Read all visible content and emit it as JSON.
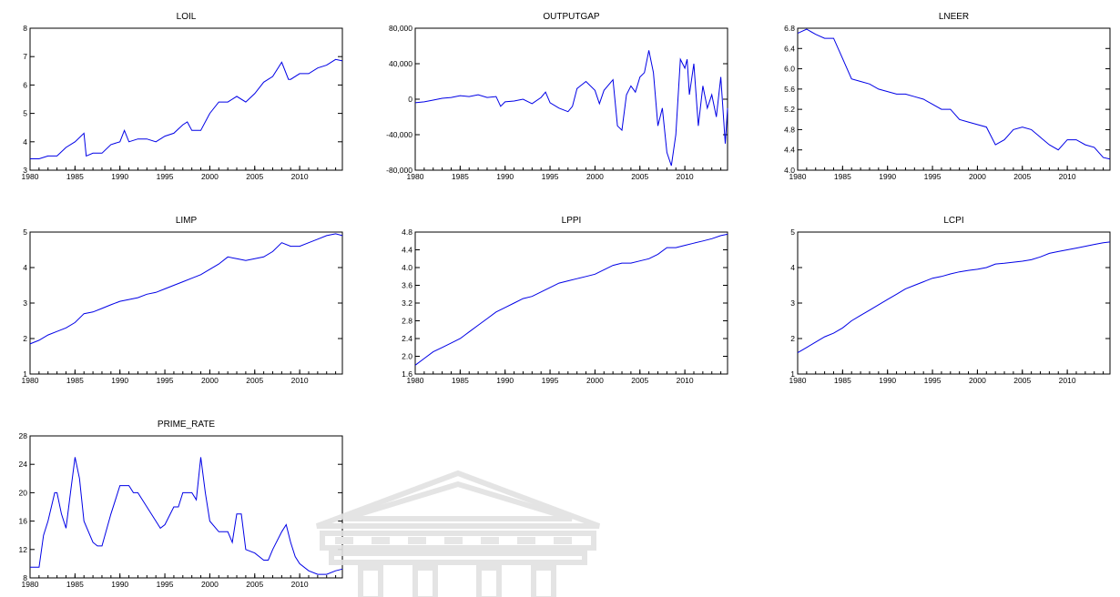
{
  "colors": {
    "series": "#0000e6",
    "axis": "#000000",
    "background": "#ffffff"
  },
  "watermark": {
    "icon": "building-columns-watermark"
  },
  "chart_data": [
    {
      "type": "line",
      "title": "LOIL",
      "xlim": [
        1980,
        2014.75
      ],
      "ylim": [
        3,
        8
      ],
      "x_ticks": [
        "1980",
        "1985",
        "1990",
        "1995",
        "2000",
        "2005",
        "2010"
      ],
      "y_ticks": [
        "3",
        "4",
        "5",
        "6",
        "7",
        "8"
      ],
      "series": [
        {
          "x": [
            1980,
            1981,
            1982,
            1983,
            1984,
            1985,
            1986,
            1986.25,
            1987,
            1988,
            1989,
            1990,
            1990.5,
            1991,
            1992,
            1993,
            1994,
            1995,
            1996,
            1997,
            1997.5,
            1998,
            1999,
            2000,
            2001,
            2002,
            2003,
            2004,
            2005,
            2006,
            2007,
            2008,
            2008.75,
            2009,
            2010,
            2011,
            2012,
            2013,
            2014,
            2014.75
          ],
          "y": [
            3.4,
            3.4,
            3.5,
            3.5,
            3.8,
            4.0,
            4.3,
            3.5,
            3.6,
            3.6,
            3.9,
            4.0,
            4.4,
            4.0,
            4.1,
            4.1,
            4.0,
            4.2,
            4.3,
            4.6,
            4.7,
            4.4,
            4.4,
            5.0,
            5.4,
            5.4,
            5.6,
            5.4,
            5.7,
            6.1,
            6.3,
            6.8,
            6.2,
            6.2,
            6.4,
            6.4,
            6.6,
            6.7,
            6.9,
            6.85
          ]
        }
      ]
    },
    {
      "type": "line",
      "title": "OUTPUTGAP",
      "xlim": [
        1980,
        2014.75
      ],
      "ylim": [
        -80000,
        80000
      ],
      "x_ticks": [
        "1980",
        "1985",
        "1990",
        "1995",
        "2000",
        "2005",
        "2010"
      ],
      "y_ticks": [
        "-80,000",
        "-40,000",
        "0",
        "40,000",
        "80,000"
      ],
      "series": [
        {
          "x": [
            1980,
            1981,
            1982,
            1983,
            1984,
            1985,
            1986,
            1987,
            1988,
            1989,
            1989.5,
            1990,
            1991,
            1992,
            1993,
            1994,
            1994.5,
            1995,
            1996,
            1997,
            1997.5,
            1998,
            1999,
            2000,
            2000.5,
            2001,
            2002,
            2002.5,
            2003,
            2003.5,
            2004,
            2004.5,
            2005,
            2005.5,
            2006,
            2006.5,
            2007,
            2007.5,
            2008,
            2008.5,
            2009,
            2009.5,
            2010,
            2010.25,
            2010.5,
            2011,
            2011.5,
            2012,
            2012.5,
            2013,
            2013.5,
            2014,
            2014.5,
            2014.75
          ],
          "y": [
            -4000,
            -3000,
            -1000,
            1000,
            2000,
            4000,
            3000,
            5000,
            2000,
            3000,
            -8000,
            -3000,
            -2000,
            0,
            -5000,
            2000,
            8000,
            -4000,
            -10000,
            -14000,
            -8000,
            12000,
            20000,
            10000,
            -5000,
            10000,
            22000,
            -30000,
            -35000,
            5000,
            15000,
            8000,
            25000,
            30000,
            55000,
            30000,
            -30000,
            -10000,
            -60000,
            -75000,
            -40000,
            45000,
            35000,
            45000,
            5000,
            40000,
            -30000,
            15000,
            -10000,
            5000,
            -20000,
            25000,
            -50000,
            -10000
          ]
        }
      ]
    },
    {
      "type": "line",
      "title": "LNEER",
      "xlim": [
        1980,
        2014.75
      ],
      "ylim": [
        4.0,
        6.8
      ],
      "x_ticks": [
        "1980",
        "1985",
        "1990",
        "1995",
        "2000",
        "2005",
        "2010"
      ],
      "y_ticks": [
        "4.0",
        "4.4",
        "4.8",
        "5.2",
        "5.6",
        "6.0",
        "6.4",
        "6.8"
      ],
      "series": [
        {
          "x": [
            1980,
            1981,
            1982,
            1983,
            1984,
            1985,
            1986,
            1987,
            1988,
            1989,
            1990,
            1991,
            1992,
            1993,
            1994,
            1995,
            1996,
            1997,
            1998,
            1999,
            2000,
            2001,
            2002,
            2003,
            2004,
            2005,
            2006,
            2007,
            2008,
            2009,
            2010,
            2011,
            2012,
            2013,
            2014,
            2014.75
          ],
          "y": [
            6.7,
            6.78,
            6.68,
            6.6,
            6.6,
            6.2,
            5.8,
            5.75,
            5.7,
            5.6,
            5.55,
            5.5,
            5.5,
            5.45,
            5.4,
            5.3,
            5.2,
            5.2,
            5.0,
            4.95,
            4.9,
            4.85,
            4.5,
            4.6,
            4.8,
            4.85,
            4.8,
            4.65,
            4.5,
            4.4,
            4.6,
            4.6,
            4.5,
            4.45,
            4.25,
            4.22
          ]
        }
      ]
    },
    {
      "type": "line",
      "title": "LIMP",
      "xlim": [
        1980,
        2014.75
      ],
      "ylim": [
        1,
        5
      ],
      "x_ticks": [
        "1980",
        "1985",
        "1990",
        "1995",
        "2000",
        "2005",
        "2010"
      ],
      "y_ticks": [
        "1",
        "2",
        "3",
        "4",
        "5"
      ],
      "series": [
        {
          "x": [
            1980,
            1981,
            1982,
            1983,
            1984,
            1985,
            1986,
            1987,
            1988,
            1989,
            1990,
            1991,
            1992,
            1993,
            1994,
            1995,
            1996,
            1997,
            1998,
            1999,
            2000,
            2001,
            2002,
            2003,
            2004,
            2005,
            2006,
            2007,
            2008,
            2009,
            2010,
            2011,
            2012,
            2013,
            2014,
            2014.75
          ],
          "y": [
            1.85,
            1.95,
            2.1,
            2.2,
            2.3,
            2.45,
            2.7,
            2.75,
            2.85,
            2.95,
            3.05,
            3.1,
            3.15,
            3.25,
            3.3,
            3.4,
            3.5,
            3.6,
            3.7,
            3.8,
            3.95,
            4.1,
            4.3,
            4.25,
            4.2,
            4.25,
            4.3,
            4.45,
            4.7,
            4.6,
            4.6,
            4.7,
            4.8,
            4.9,
            4.95,
            4.9
          ]
        }
      ]
    },
    {
      "type": "line",
      "title": "LPPI",
      "xlim": [
        1980,
        2014.75
      ],
      "ylim": [
        1.6,
        4.8
      ],
      "x_ticks": [
        "1980",
        "1985",
        "1990",
        "1995",
        "2000",
        "2005",
        "2010"
      ],
      "y_ticks": [
        "1.6",
        "2.0",
        "2.4",
        "2.8",
        "3.2",
        "3.6",
        "4.0",
        "4.4",
        "4.8"
      ],
      "series": [
        {
          "x": [
            1980,
            1981,
            1982,
            1983,
            1984,
            1985,
            1986,
            1987,
            1988,
            1989,
            1990,
            1991,
            1992,
            1993,
            1994,
            1995,
            1996,
            1997,
            1998,
            1999,
            2000,
            2001,
            2002,
            2003,
            2004,
            2005,
            2006,
            2007,
            2008,
            2009,
            2010,
            2011,
            2012,
            2013,
            2014,
            2014.75
          ],
          "y": [
            1.8,
            1.95,
            2.1,
            2.2,
            2.3,
            2.4,
            2.55,
            2.7,
            2.85,
            3.0,
            3.1,
            3.2,
            3.3,
            3.35,
            3.45,
            3.55,
            3.65,
            3.7,
            3.75,
            3.8,
            3.85,
            3.95,
            4.05,
            4.1,
            4.1,
            4.15,
            4.2,
            4.3,
            4.45,
            4.45,
            4.5,
            4.55,
            4.6,
            4.65,
            4.72,
            4.75
          ]
        }
      ]
    },
    {
      "type": "line",
      "title": "LCPI",
      "xlim": [
        1980,
        2014.75
      ],
      "ylim": [
        1,
        5
      ],
      "x_ticks": [
        "1980",
        "1985",
        "1990",
        "1995",
        "2000",
        "2005",
        "2010"
      ],
      "y_ticks": [
        "1",
        "2",
        "3",
        "4",
        "5"
      ],
      "series": [
        {
          "x": [
            1980,
            1981,
            1982,
            1983,
            1984,
            1985,
            1986,
            1987,
            1988,
            1989,
            1990,
            1991,
            1992,
            1993,
            1994,
            1995,
            1996,
            1997,
            1998,
            1999,
            2000,
            2001,
            2002,
            2003,
            2004,
            2005,
            2006,
            2007,
            2008,
            2009,
            2010,
            2011,
            2012,
            2013,
            2014,
            2014.75
          ],
          "y": [
            1.6,
            1.75,
            1.9,
            2.05,
            2.15,
            2.3,
            2.5,
            2.65,
            2.8,
            2.95,
            3.1,
            3.25,
            3.4,
            3.5,
            3.6,
            3.7,
            3.75,
            3.82,
            3.88,
            3.92,
            3.95,
            4.0,
            4.1,
            4.12,
            4.15,
            4.18,
            4.22,
            4.3,
            4.4,
            4.45,
            4.5,
            4.55,
            4.6,
            4.65,
            4.7,
            4.72
          ]
        }
      ]
    },
    {
      "type": "line",
      "title": "PRIME_RATE",
      "xlim": [
        1980,
        2014.75
      ],
      "ylim": [
        8,
        28
      ],
      "x_ticks": [
        "1980",
        "1985",
        "1990",
        "1995",
        "2000",
        "2005",
        "2010"
      ],
      "y_ticks": [
        "8",
        "12",
        "16",
        "20",
        "24",
        "28"
      ],
      "series": [
        {
          "x": [
            1980,
            1981,
            1981.5,
            1982,
            1982.75,
            1983,
            1983.5,
            1984,
            1984.5,
            1985,
            1985.5,
            1986,
            1987,
            1987.5,
            1988,
            1989,
            1989.5,
            1990,
            1991,
            1991.5,
            1992,
            1993,
            1994,
            1994.5,
            1995,
            1996,
            1996.5,
            1997,
            1998,
            1998.5,
            1999,
            1999.5,
            2000,
            2001,
            2001.5,
            2002,
            2002.5,
            2003,
            2003.5,
            2004,
            2005,
            2006,
            2006.5,
            2007,
            2008,
            2008.5,
            2009,
            2009.5,
            2010,
            2011,
            2012,
            2013,
            2014,
            2014.75
          ],
          "y": [
            9.5,
            9.5,
            14,
            16,
            20,
            20,
            17,
            15,
            20,
            25,
            22,
            16,
            13,
            12.5,
            12.5,
            17,
            19,
            21,
            21,
            20,
            20,
            18,
            16,
            15,
            15.5,
            18,
            18,
            20,
            20,
            19,
            25,
            20,
            16,
            14.5,
            14.5,
            14.5,
            13,
            17,
            17,
            12,
            11.5,
            10.5,
            10.5,
            12,
            14.5,
            15.5,
            13,
            11,
            10,
            9,
            8.5,
            8.5,
            9,
            9.25
          ]
        }
      ]
    }
  ]
}
